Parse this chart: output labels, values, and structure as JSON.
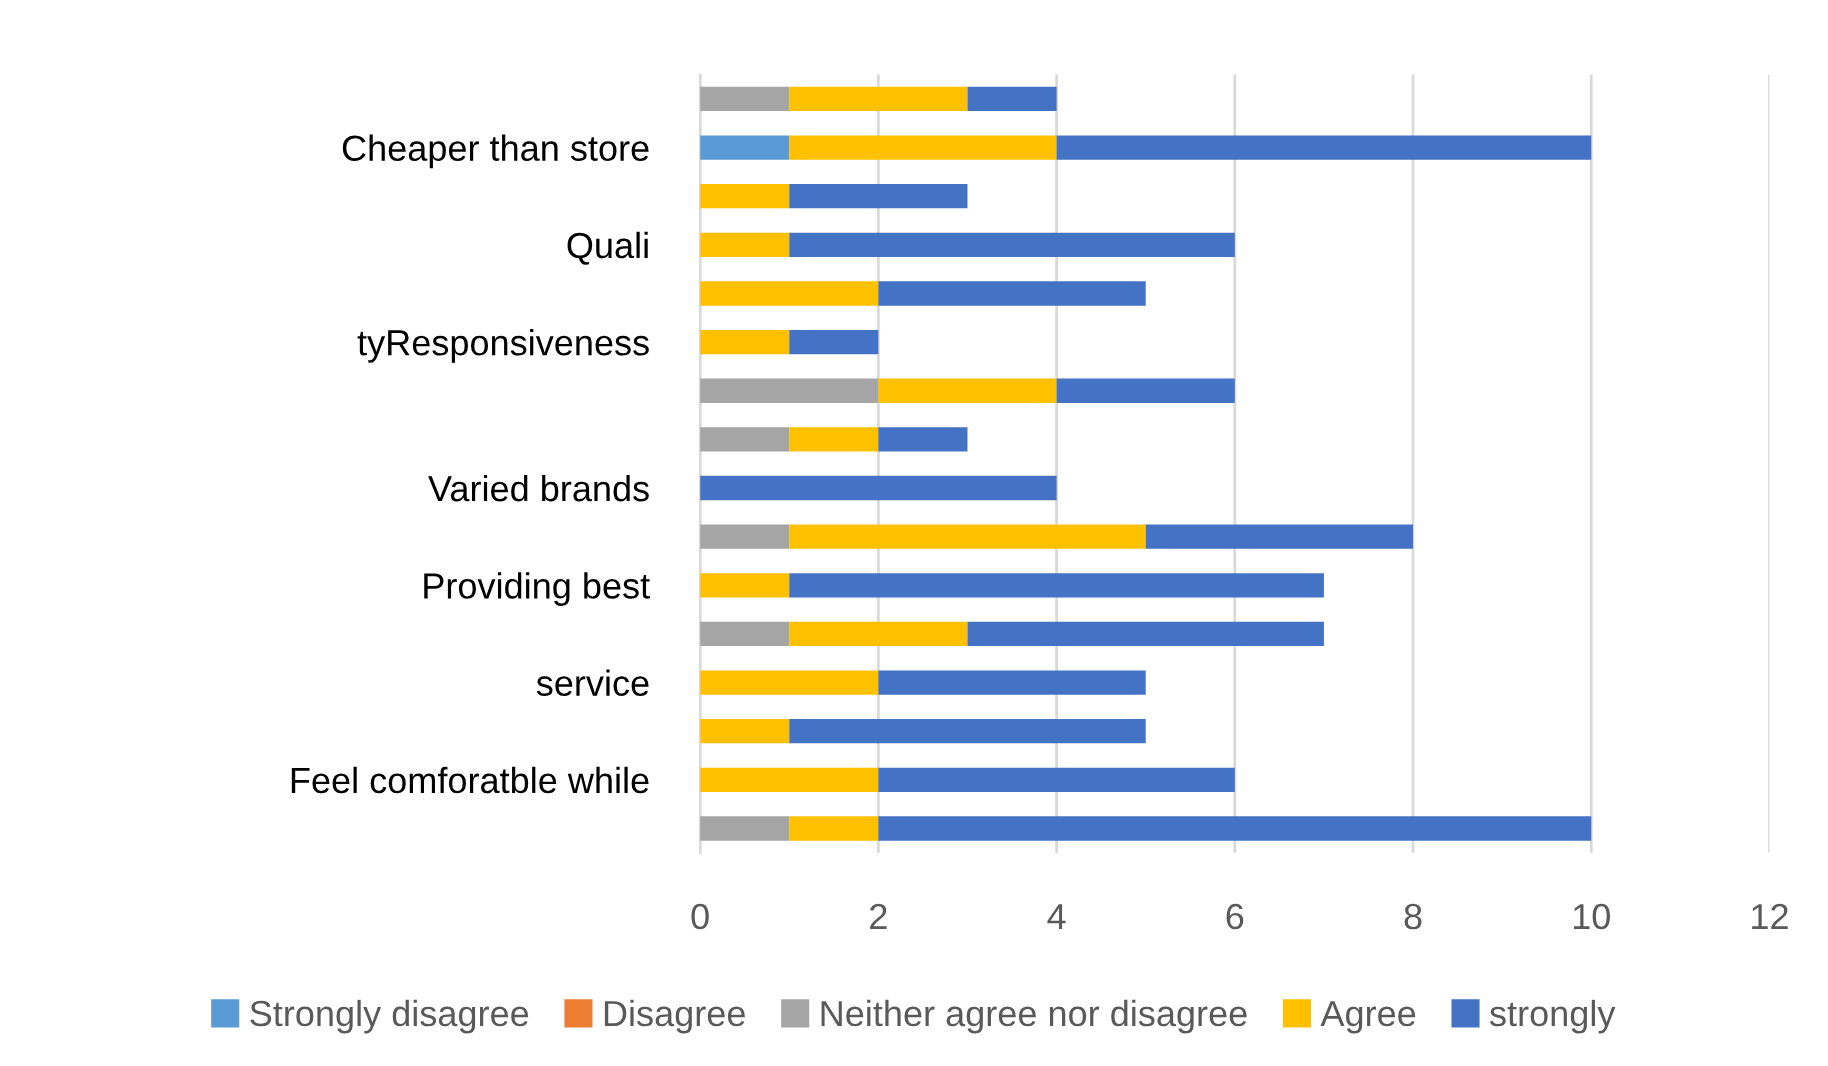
{
  "chart_data": {
    "type": "bar",
    "orientation": "horizontal",
    "stacked": true,
    "categories": [
      null,
      "Cheaper than store",
      null,
      "Quali",
      null,
      "tyResponsiveness",
      null,
      null,
      "Varied brands",
      null,
      "Providing best",
      null,
      "service",
      null,
      "Feel comforatble while",
      null
    ],
    "series": [
      {
        "name": "Strongly disagree",
        "color": "#5b9bd5",
        "values": [
          0,
          1,
          0,
          0,
          0,
          0,
          0,
          0,
          0,
          0,
          0,
          0,
          0,
          0,
          0,
          0
        ]
      },
      {
        "name": "Disagree",
        "color": "#ed7d31",
        "values": [
          0,
          0,
          0,
          0,
          0,
          0,
          0,
          0,
          0,
          0,
          0,
          0,
          0,
          0,
          0,
          0
        ]
      },
      {
        "name": "Neither agree nor disagree",
        "color": "#a5a5a5",
        "values": [
          1,
          0,
          0,
          0,
          0,
          0,
          2,
          1,
          0,
          1,
          0,
          1,
          0,
          0,
          0,
          1
        ]
      },
      {
        "name": "Agree",
        "color": "#ffc000",
        "values": [
          2,
          3,
          1,
          1,
          2,
          1,
          2,
          1,
          0,
          4,
          1,
          2,
          2,
          1,
          2,
          1
        ]
      },
      {
        "name": "strongly",
        "color": "#4472c4",
        "values": [
          1,
          6,
          2,
          5,
          3,
          1,
          2,
          1,
          4,
          3,
          6,
          4,
          3,
          4,
          4,
          8
        ]
      }
    ],
    "xlim": [
      0,
      12
    ],
    "xticks": [
      0,
      2,
      4,
      6,
      8,
      10,
      12
    ],
    "grid": "x",
    "legend": "bottom"
  }
}
